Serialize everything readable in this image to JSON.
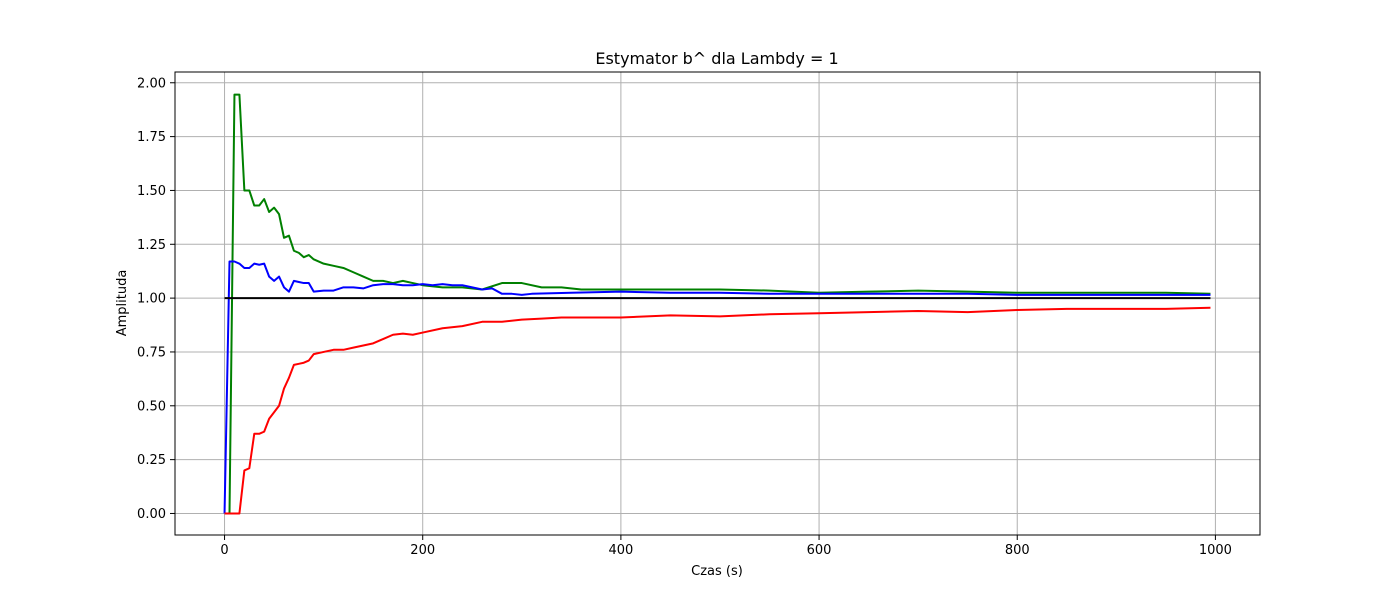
{
  "chart_data": {
    "type": "line",
    "title": "Estymator b^ dla Lambdy = 1",
    "xlabel": "Czas (s)",
    "ylabel": "Amplituda",
    "xlim": [
      -50,
      1045
    ],
    "ylim": [
      -0.1,
      2.05
    ],
    "grid": true,
    "xticks": [
      0,
      200,
      400,
      600,
      800,
      1000
    ],
    "yticks": [
      0.0,
      0.25,
      0.5,
      0.75,
      1.0,
      1.25,
      1.5,
      1.75,
      2.0
    ],
    "xtick_labels": [
      "0",
      "200",
      "400",
      "600",
      "800",
      "1000"
    ],
    "ytick_labels": [
      "0.00",
      "0.25",
      "0.50",
      "0.75",
      "1.00",
      "1.25",
      "1.50",
      "1.75",
      "2.00"
    ],
    "series": [
      {
        "name": "green",
        "color": "#008000",
        "x": [
          0,
          5,
          10,
          15,
          20,
          25,
          30,
          35,
          40,
          45,
          50,
          55,
          60,
          65,
          70,
          75,
          80,
          85,
          90,
          100,
          110,
          120,
          130,
          140,
          150,
          160,
          170,
          180,
          190,
          200,
          220,
          240,
          260,
          280,
          300,
          320,
          340,
          360,
          380,
          400,
          450,
          500,
          550,
          600,
          650,
          700,
          750,
          800,
          850,
          900,
          950,
          995
        ],
        "y": [
          0.0,
          0.0,
          1.945,
          1.945,
          1.5,
          1.5,
          1.43,
          1.43,
          1.46,
          1.4,
          1.42,
          1.39,
          1.28,
          1.29,
          1.22,
          1.21,
          1.19,
          1.2,
          1.18,
          1.16,
          1.15,
          1.14,
          1.12,
          1.1,
          1.08,
          1.08,
          1.07,
          1.08,
          1.07,
          1.06,
          1.05,
          1.05,
          1.04,
          1.07,
          1.07,
          1.05,
          1.05,
          1.04,
          1.04,
          1.04,
          1.04,
          1.04,
          1.035,
          1.025,
          1.03,
          1.035,
          1.03,
          1.025,
          1.025,
          1.025,
          1.025,
          1.02
        ]
      },
      {
        "name": "blue",
        "color": "#0000ff",
        "x": [
          0,
          5,
          10,
          15,
          20,
          25,
          30,
          35,
          40,
          45,
          50,
          55,
          60,
          65,
          70,
          75,
          80,
          85,
          90,
          100,
          110,
          120,
          130,
          140,
          150,
          160,
          170,
          180,
          190,
          200,
          210,
          220,
          230,
          240,
          250,
          260,
          270,
          280,
          290,
          300,
          310,
          350,
          400,
          450,
          500,
          550,
          600,
          650,
          700,
          750,
          800,
          850,
          900,
          950,
          995
        ],
        "y": [
          0.0,
          1.17,
          1.17,
          1.16,
          1.14,
          1.14,
          1.16,
          1.155,
          1.16,
          1.1,
          1.08,
          1.1,
          1.05,
          1.03,
          1.08,
          1.075,
          1.07,
          1.07,
          1.03,
          1.035,
          1.035,
          1.05,
          1.05,
          1.045,
          1.06,
          1.065,
          1.065,
          1.06,
          1.06,
          1.065,
          1.06,
          1.065,
          1.06,
          1.06,
          1.05,
          1.04,
          1.045,
          1.02,
          1.02,
          1.015,
          1.02,
          1.025,
          1.03,
          1.025,
          1.025,
          1.02,
          1.02,
          1.02,
          1.02,
          1.02,
          1.015,
          1.015,
          1.015,
          1.015,
          1.015
        ]
      },
      {
        "name": "black",
        "color": "#000000",
        "x": [
          0,
          995
        ],
        "y": [
          1.0,
          1.0
        ]
      },
      {
        "name": "red",
        "color": "#ff0000",
        "x": [
          0,
          5,
          10,
          15,
          20,
          25,
          30,
          35,
          40,
          45,
          50,
          55,
          60,
          65,
          70,
          75,
          80,
          85,
          90,
          100,
          110,
          120,
          130,
          140,
          150,
          160,
          170,
          180,
          190,
          200,
          220,
          240,
          260,
          280,
          300,
          320,
          340,
          360,
          380,
          400,
          450,
          500,
          550,
          600,
          650,
          700,
          750,
          800,
          850,
          900,
          950,
          995
        ],
        "y": [
          0.0,
          0.0,
          0.0,
          0.0,
          0.2,
          0.21,
          0.37,
          0.37,
          0.38,
          0.44,
          0.47,
          0.5,
          0.58,
          0.63,
          0.69,
          0.695,
          0.7,
          0.71,
          0.74,
          0.75,
          0.76,
          0.76,
          0.77,
          0.78,
          0.79,
          0.81,
          0.83,
          0.835,
          0.83,
          0.84,
          0.86,
          0.87,
          0.89,
          0.89,
          0.9,
          0.905,
          0.91,
          0.91,
          0.91,
          0.91,
          0.92,
          0.915,
          0.925,
          0.93,
          0.935,
          0.94,
          0.935,
          0.945,
          0.95,
          0.95,
          0.95,
          0.955
        ]
      }
    ]
  }
}
